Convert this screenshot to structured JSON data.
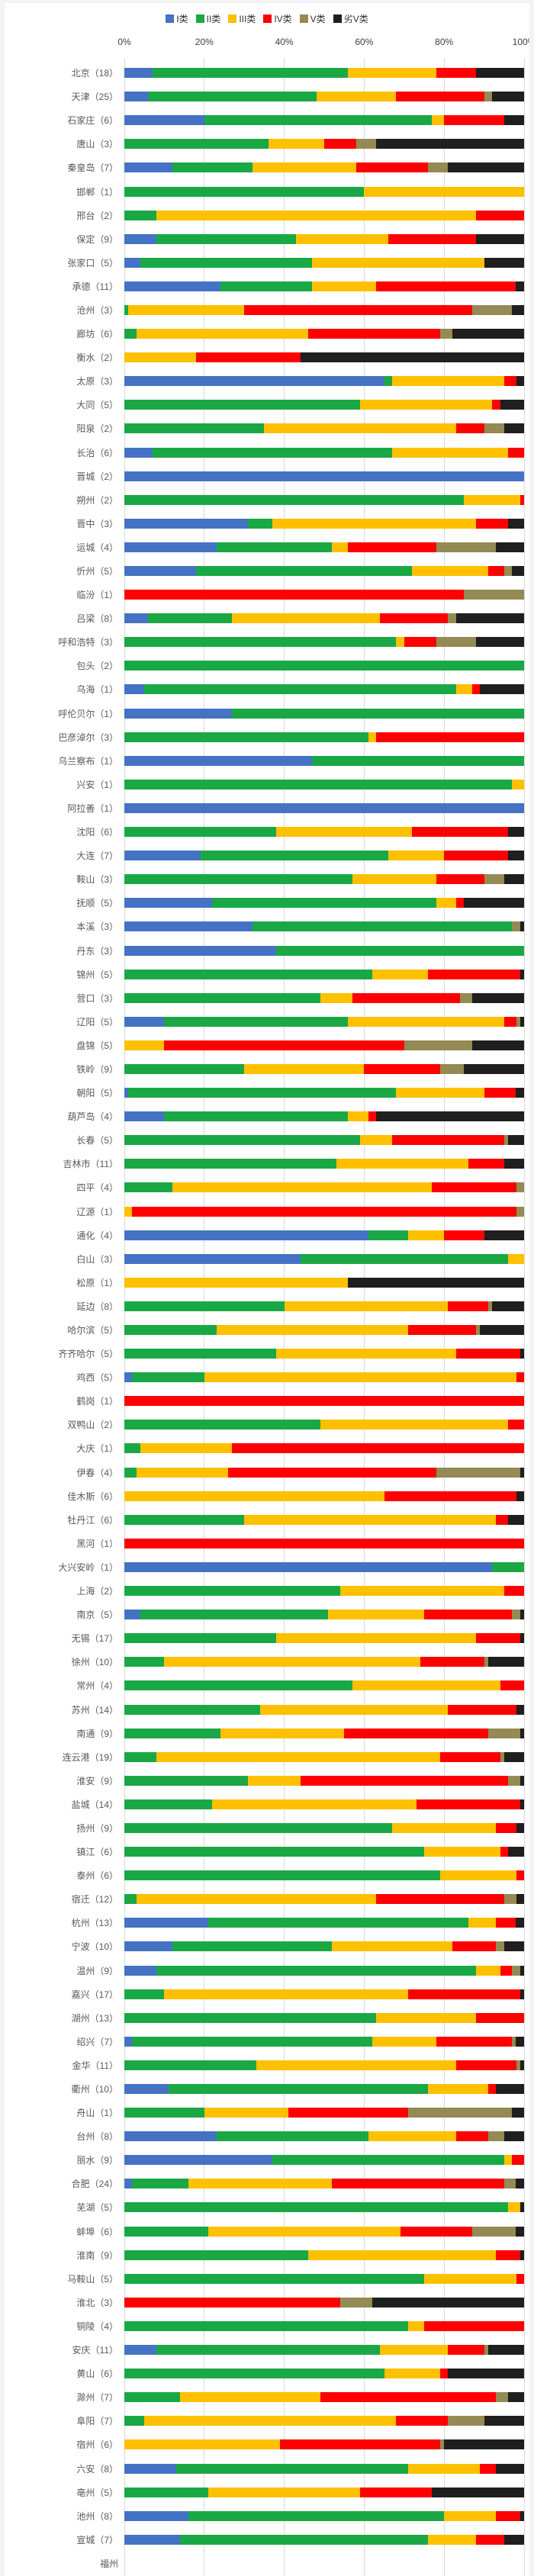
{
  "chart_data": {
    "type": "bar",
    "orientation": "horizontal",
    "stacked": true,
    "unit": "percent",
    "title": "",
    "xlabel": "",
    "ylabel": "",
    "xlim": [
      0,
      100
    ],
    "grid": true,
    "legend_position": "top-center",
    "x_ticks": [
      "0%",
      "20%",
      "40%",
      "60%",
      "80%",
      "100%"
    ],
    "series_names": [
      "I类",
      "II类",
      "III类",
      "IV类",
      "V类",
      "劣V类"
    ],
    "series_colors": [
      "#4472c4",
      "#1aa844",
      "#ffc000",
      "#fe0000",
      "#948a54",
      "#1f1f1f"
    ],
    "rows": [
      {
        "city": "北京",
        "count": 18,
        "values": [
          7,
          49,
          22,
          10,
          0,
          12
        ]
      },
      {
        "city": "天津",
        "count": 25,
        "values": [
          6,
          42,
          20,
          22,
          2,
          8
        ]
      },
      {
        "city": "石家庄",
        "count": 6,
        "values": [
          20,
          57,
          3,
          15,
          0,
          5
        ]
      },
      {
        "city": "唐山",
        "count": 3,
        "values": [
          0,
          36,
          14,
          8,
          5,
          37
        ]
      },
      {
        "city": "秦皇岛",
        "count": 7,
        "values": [
          12,
          20,
          26,
          18,
          5,
          19
        ]
      },
      {
        "city": "邯郸",
        "count": 1,
        "values": [
          0,
          60,
          40,
          0,
          0,
          0
        ]
      },
      {
        "city": "邢台",
        "count": 2,
        "values": [
          0,
          8,
          80,
          12,
          0,
          0
        ]
      },
      {
        "city": "保定",
        "count": 9,
        "values": [
          8,
          35,
          23,
          22,
          0,
          12
        ]
      },
      {
        "city": "张家口",
        "count": 5,
        "values": [
          4,
          43,
          43,
          0,
          0,
          10
        ]
      },
      {
        "city": "承德",
        "count": 11,
        "values": [
          24,
          23,
          16,
          35,
          0,
          2
        ]
      },
      {
        "city": "沧州",
        "count": 3,
        "values": [
          0,
          1,
          29,
          57,
          10,
          3
        ]
      },
      {
        "city": "廊坊",
        "count": 6,
        "values": [
          0,
          3,
          43,
          33,
          3,
          18
        ]
      },
      {
        "city": "衡水",
        "count": 2,
        "values": [
          0,
          0,
          18,
          26,
          0,
          56
        ]
      },
      {
        "city": "太原",
        "count": 3,
        "values": [
          65,
          2,
          28,
          3,
          0,
          2
        ]
      },
      {
        "city": "大同",
        "count": 5,
        "values": [
          0,
          59,
          33,
          2,
          0,
          6
        ]
      },
      {
        "city": "阳泉",
        "count": 2,
        "values": [
          0,
          35,
          48,
          7,
          5,
          5
        ]
      },
      {
        "city": "长治",
        "count": 6,
        "values": [
          7,
          60,
          29,
          4,
          0,
          0
        ]
      },
      {
        "city": "晋城",
        "count": 2,
        "values": [
          100,
          0,
          0,
          0,
          0,
          0
        ]
      },
      {
        "city": "朔州",
        "count": 2,
        "values": [
          0,
          85,
          14,
          1,
          0,
          0
        ]
      },
      {
        "city": "晋中",
        "count": 3,
        "values": [
          31,
          6,
          51,
          8,
          0,
          4
        ]
      },
      {
        "city": "运城",
        "count": 4,
        "values": [
          23,
          29,
          4,
          22,
          15,
          7
        ]
      },
      {
        "city": "忻州",
        "count": 5,
        "values": [
          18,
          54,
          19,
          4,
          2,
          3
        ]
      },
      {
        "city": "临汾",
        "count": 1,
        "values": [
          0,
          0,
          0,
          85,
          15,
          0
        ]
      },
      {
        "city": "吕梁",
        "count": 8,
        "values": [
          6,
          21,
          37,
          17,
          2,
          17
        ]
      },
      {
        "city": "呼和浩特",
        "count": 3,
        "values": [
          0,
          68,
          2,
          8,
          10,
          12
        ]
      },
      {
        "city": "包头",
        "count": 2,
        "values": [
          0,
          100,
          0,
          0,
          0,
          0
        ]
      },
      {
        "city": "乌海",
        "count": 1,
        "values": [
          5,
          78,
          4,
          2,
          0,
          11
        ]
      },
      {
        "city": "呼伦贝尔",
        "count": 1,
        "values": [
          27,
          73,
          0,
          0,
          0,
          0
        ]
      },
      {
        "city": "巴彦淖尔",
        "count": 3,
        "values": [
          0,
          61,
          2,
          37,
          0,
          0
        ]
      },
      {
        "city": "乌兰察布",
        "count": 1,
        "values": [
          47,
          53,
          0,
          0,
          0,
          0
        ]
      },
      {
        "city": "兴安",
        "count": 1,
        "values": [
          0,
          97,
          3,
          0,
          0,
          0
        ]
      },
      {
        "city": "阿拉善",
        "count": 1,
        "values": [
          100,
          0,
          0,
          0,
          0,
          0
        ]
      },
      {
        "city": "沈阳",
        "count": 6,
        "values": [
          0,
          38,
          34,
          24,
          0,
          4
        ]
      },
      {
        "city": "大连",
        "count": 7,
        "values": [
          19,
          47,
          14,
          16,
          0,
          4
        ]
      },
      {
        "city": "鞍山",
        "count": 3,
        "values": [
          0,
          57,
          21,
          12,
          5,
          5
        ]
      },
      {
        "city": "抚顺",
        "count": 5,
        "values": [
          22,
          56,
          5,
          2,
          0,
          15
        ]
      },
      {
        "city": "本溪",
        "count": 3,
        "values": [
          32,
          65,
          0,
          0,
          2,
          1
        ]
      },
      {
        "city": "丹东",
        "count": 3,
        "values": [
          38,
          62,
          0,
          0,
          0,
          0
        ]
      },
      {
        "city": "锦州",
        "count": 5,
        "values": [
          0,
          62,
          14,
          23,
          0,
          1
        ]
      },
      {
        "city": "营口",
        "count": 3,
        "values": [
          0,
          49,
          8,
          27,
          3,
          13
        ]
      },
      {
        "city": "辽阳",
        "count": 5,
        "values": [
          10,
          46,
          39,
          3,
          1,
          1
        ]
      },
      {
        "city": "盘锦",
        "count": 5,
        "values": [
          0,
          0,
          10,
          60,
          17,
          13
        ]
      },
      {
        "city": "铁岭",
        "count": 9,
        "values": [
          0,
          30,
          30,
          19,
          6,
          15
        ]
      },
      {
        "city": "朝阳",
        "count": 5,
        "values": [
          1,
          67,
          22,
          8,
          0,
          2
        ]
      },
      {
        "city": "葫芦岛",
        "count": 4,
        "values": [
          10,
          46,
          5,
          2,
          0,
          37
        ]
      },
      {
        "city": "长春",
        "count": 5,
        "values": [
          0,
          59,
          8,
          28,
          1,
          4
        ]
      },
      {
        "city": "吉林市",
        "count": 11,
        "values": [
          0,
          53,
          33,
          9,
          0,
          5
        ]
      },
      {
        "city": "四平",
        "count": 4,
        "values": [
          0,
          12,
          65,
          21,
          2,
          0
        ]
      },
      {
        "city": "辽源",
        "count": 1,
        "values": [
          0,
          0,
          2,
          96,
          2,
          0
        ]
      },
      {
        "city": "通化",
        "count": 4,
        "values": [
          61,
          10,
          9,
          10,
          0,
          10
        ]
      },
      {
        "city": "白山",
        "count": 3,
        "values": [
          44,
          52,
          4,
          0,
          0,
          0
        ]
      },
      {
        "city": "松原",
        "count": 1,
        "values": [
          0,
          0,
          56,
          0,
          0,
          44
        ]
      },
      {
        "city": "延边",
        "count": 8,
        "values": [
          0,
          40,
          41,
          10,
          1,
          8
        ]
      },
      {
        "city": "哈尔滨",
        "count": 5,
        "values": [
          0,
          23,
          48,
          17,
          1,
          11
        ]
      },
      {
        "city": "齐齐哈尔",
        "count": 5,
        "values": [
          0,
          38,
          45,
          16,
          0,
          1
        ]
      },
      {
        "city": "鸡西",
        "count": 5,
        "values": [
          2,
          18,
          78,
          2,
          0,
          0
        ]
      },
      {
        "city": "鹤岗",
        "count": 1,
        "values": [
          0,
          0,
          0,
          100,
          0,
          0
        ]
      },
      {
        "city": "双鸭山",
        "count": 2,
        "values": [
          0,
          49,
          47,
          4,
          0,
          0
        ]
      },
      {
        "city": "大庆",
        "count": 1,
        "values": [
          0,
          4,
          23,
          73,
          0,
          0
        ]
      },
      {
        "city": "伊春",
        "count": 4,
        "values": [
          0,
          3,
          23,
          52,
          21,
          1
        ]
      },
      {
        "city": "佳木斯",
        "count": 6,
        "values": [
          0,
          0,
          65,
          33,
          0,
          2
        ]
      },
      {
        "city": "牡丹江",
        "count": 6,
        "values": [
          0,
          30,
          63,
          3,
          0,
          4
        ]
      },
      {
        "city": "黑河",
        "count": 1,
        "values": [
          0,
          0,
          0,
          100,
          0,
          0
        ]
      },
      {
        "city": "大兴安岭",
        "count": 1,
        "values": [
          92,
          8,
          0,
          0,
          0,
          0
        ]
      },
      {
        "city": "上海",
        "count": 2,
        "values": [
          0,
          54,
          41,
          5,
          0,
          0
        ]
      },
      {
        "city": "南京",
        "count": 5,
        "values": [
          4,
          47,
          24,
          22,
          2,
          1
        ]
      },
      {
        "city": "无锡",
        "count": 17,
        "values": [
          0,
          38,
          50,
          11,
          0,
          1
        ]
      },
      {
        "city": "徐州",
        "count": 10,
        "values": [
          0,
          10,
          64,
          16,
          1,
          9
        ]
      },
      {
        "city": "常州",
        "count": 4,
        "values": [
          0,
          57,
          37,
          6,
          0,
          0
        ]
      },
      {
        "city": "苏州",
        "count": 14,
        "values": [
          0,
          34,
          47,
          17,
          0,
          2
        ]
      },
      {
        "city": "南通",
        "count": 9,
        "values": [
          0,
          24,
          31,
          36,
          8,
          1
        ]
      },
      {
        "city": "连云港",
        "count": 19,
        "values": [
          0,
          8,
          71,
          15,
          1,
          5
        ]
      },
      {
        "city": "淮安",
        "count": 9,
        "values": [
          0,
          31,
          13,
          52,
          3,
          1
        ]
      },
      {
        "city": "盐城",
        "count": 14,
        "values": [
          0,
          22,
          51,
          26,
          0,
          1
        ]
      },
      {
        "city": "扬州",
        "count": 9,
        "values": [
          0,
          67,
          26,
          5,
          0,
          2
        ]
      },
      {
        "city": "镇江",
        "count": 6,
        "values": [
          0,
          75,
          19,
          2,
          0,
          4
        ]
      },
      {
        "city": "泰州",
        "count": 6,
        "values": [
          0,
          79,
          19,
          2,
          0,
          0
        ]
      },
      {
        "city": "宿迁",
        "count": 12,
        "values": [
          0,
          3,
          60,
          32,
          3,
          2
        ]
      },
      {
        "city": "杭州",
        "count": 13,
        "values": [
          21,
          65,
          7,
          5,
          0,
          2
        ]
      },
      {
        "city": "宁波",
        "count": 10,
        "values": [
          12,
          40,
          30,
          11,
          2,
          5
        ]
      },
      {
        "city": "温州",
        "count": 9,
        "values": [
          8,
          80,
          6,
          3,
          2,
          1
        ]
      },
      {
        "city": "嘉兴",
        "count": 17,
        "values": [
          0,
          10,
          61,
          28,
          0,
          1
        ]
      },
      {
        "city": "湖州",
        "count": 13,
        "values": [
          0,
          63,
          25,
          12,
          0,
          0
        ]
      },
      {
        "city": "绍兴",
        "count": 7,
        "values": [
          2,
          60,
          16,
          19,
          1,
          2
        ]
      },
      {
        "city": "金华",
        "count": 11,
        "values": [
          0,
          33,
          50,
          15,
          1,
          1
        ]
      },
      {
        "city": "衢州",
        "count": 10,
        "values": [
          11,
          65,
          15,
          2,
          0,
          7
        ]
      },
      {
        "city": "舟山",
        "count": 1,
        "values": [
          0,
          20,
          21,
          30,
          26,
          3
        ]
      },
      {
        "city": "台州",
        "count": 8,
        "values": [
          23,
          38,
          22,
          8,
          4,
          5
        ]
      },
      {
        "city": "丽水",
        "count": 9,
        "values": [
          37,
          58,
          2,
          3,
          0,
          0
        ]
      },
      {
        "city": "合肥",
        "count": 24,
        "values": [
          2,
          14,
          36,
          43,
          3,
          2
        ]
      },
      {
        "city": "芜湖",
        "count": 5,
        "values": [
          0,
          96,
          3,
          0,
          0,
          1
        ]
      },
      {
        "city": "蚌埠",
        "count": 6,
        "values": [
          0,
          21,
          48,
          18,
          11,
          2
        ]
      },
      {
        "city": "淮南",
        "count": 9,
        "values": [
          0,
          46,
          47,
          6,
          0,
          1
        ]
      },
      {
        "city": "马鞍山",
        "count": 5,
        "values": [
          0,
          75,
          23,
          2,
          0,
          0
        ]
      },
      {
        "city": "淮北",
        "count": 3,
        "values": [
          0,
          0,
          0,
          54,
          8,
          38
        ]
      },
      {
        "city": "铜陵",
        "count": 4,
        "values": [
          0,
          71,
          4,
          25,
          0,
          0
        ]
      },
      {
        "city": "安庆",
        "count": 11,
        "values": [
          8,
          56,
          17,
          9,
          1,
          9
        ]
      },
      {
        "city": "黄山",
        "count": 6,
        "values": [
          0,
          65,
          14,
          2,
          0,
          19
        ]
      },
      {
        "city": "滁州",
        "count": 7,
        "values": [
          0,
          14,
          35,
          44,
          3,
          4
        ]
      },
      {
        "city": "阜阳",
        "count": 7,
        "values": [
          0,
          5,
          63,
          13,
          9,
          10
        ]
      },
      {
        "city": "宿州",
        "count": 6,
        "values": [
          0,
          0,
          39,
          40,
          1,
          20
        ]
      },
      {
        "city": "六安",
        "count": 8,
        "values": [
          13,
          58,
          18,
          4,
          0,
          7
        ]
      },
      {
        "city": "亳州",
        "count": 5,
        "values": [
          0,
          21,
          38,
          18,
          0,
          23
        ]
      },
      {
        "city": "池州",
        "count": 8,
        "values": [
          16,
          64,
          13,
          6,
          0,
          1
        ]
      },
      {
        "city": "宣城",
        "count": 7,
        "values": [
          14,
          62,
          12,
          7,
          0,
          5
        ]
      }
    ],
    "partial_bottom_row": {
      "city": "福州",
      "note": "label clipped at bottom edge of screenshot"
    }
  },
  "ui": {
    "background_color": "#ffffff",
    "page_edge_color": "#f3f3f3",
    "gridline_color": "#d9d9d9",
    "label_color": "#595959",
    "axis_label_color": "#404040",
    "label_format": "{city}（{count}）"
  }
}
